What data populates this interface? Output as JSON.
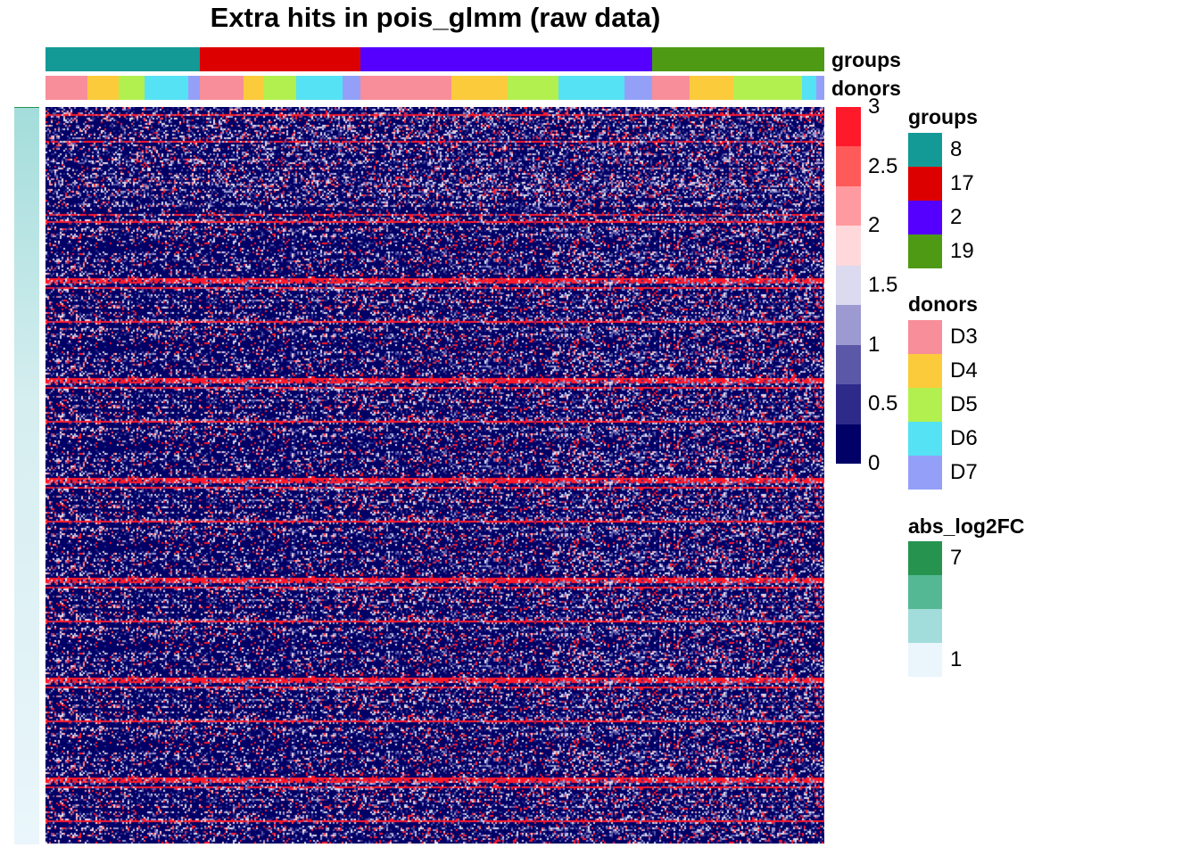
{
  "chart_data": {
    "type": "heatmap",
    "title": "Extra hits in pois_glmm (raw data)",
    "value_scale": {
      "min": 0,
      "max": 3,
      "ticks": [
        "3",
        "2.5",
        "2",
        "1.5",
        "1",
        "0.5",
        "0"
      ],
      "bins": [
        "#FF1A2B",
        "#FF5A5A",
        "#FF9AA0",
        "#FFD8DC",
        "#DCDAEE",
        "#9C9AD0",
        "#5C58A8",
        "#2E2A8A",
        "#000066"
      ]
    },
    "column_annotations": {
      "groups": {
        "label": "groups",
        "segments": [
          {
            "level": "8",
            "share": 0.198
          },
          {
            "level": "17",
            "share": 0.206
          },
          {
            "level": "2",
            "share": 0.375
          },
          {
            "level": "19",
            "share": 0.221
          }
        ]
      },
      "donors": {
        "label": "donors",
        "segments": [
          {
            "level": "D3",
            "share": 0.054
          },
          {
            "level": "D4",
            "share": 0.04
          },
          {
            "level": "D5",
            "share": 0.033
          },
          {
            "level": "D6",
            "share": 0.056
          },
          {
            "level": "D7",
            "share": 0.015
          },
          {
            "level": "D3",
            "share": 0.056
          },
          {
            "level": "D4",
            "share": 0.026
          },
          {
            "level": "D5",
            "share": 0.042
          },
          {
            "level": "D6",
            "share": 0.059
          },
          {
            "level": "D7",
            "share": 0.023
          },
          {
            "level": "D3",
            "share": 0.117
          },
          {
            "level": "D4",
            "share": 0.073
          },
          {
            "level": "D5",
            "share": 0.065
          },
          {
            "level": "D6",
            "share": 0.084
          },
          {
            "level": "D7",
            "share": 0.036
          },
          {
            "level": "D3",
            "share": 0.048
          },
          {
            "level": "D4",
            "share": 0.056
          },
          {
            "level": "D5",
            "share": 0.088
          },
          {
            "level": "D6",
            "share": 0.019
          },
          {
            "level": "D7",
            "share": 0.01
          }
        ]
      }
    },
    "row_annotation": {
      "name": "abs_log2FC",
      "range": [
        1,
        7
      ],
      "top_value": 7,
      "bottom_value": 1
    }
  },
  "legends": {
    "groups": {
      "title": "groups",
      "items": [
        {
          "label": "8",
          "color": "#139A96"
        },
        {
          "label": "17",
          "color": "#DD0000"
        },
        {
          "label": "2",
          "color": "#5500FF"
        },
        {
          "label": "19",
          "color": "#4E9A14"
        }
      ]
    },
    "donors": {
      "title": "donors",
      "items": [
        {
          "label": "D3",
          "color": "#F78E9A"
        },
        {
          "label": "D4",
          "color": "#FBCB3C"
        },
        {
          "label": "D5",
          "color": "#B2F050"
        },
        {
          "label": "D6",
          "color": "#55E2F4"
        },
        {
          "label": "D7",
          "color": "#94A0F8"
        }
      ]
    },
    "abs_log2FC": {
      "title": "abs_log2FC",
      "items": [
        {
          "label": "7",
          "color": "#26934F"
        },
        {
          "label": "",
          "color": "#55B894"
        },
        {
          "label": "",
          "color": "#A3DDDB"
        },
        {
          "label": "1",
          "color": "#EAF6FB"
        }
      ]
    }
  }
}
